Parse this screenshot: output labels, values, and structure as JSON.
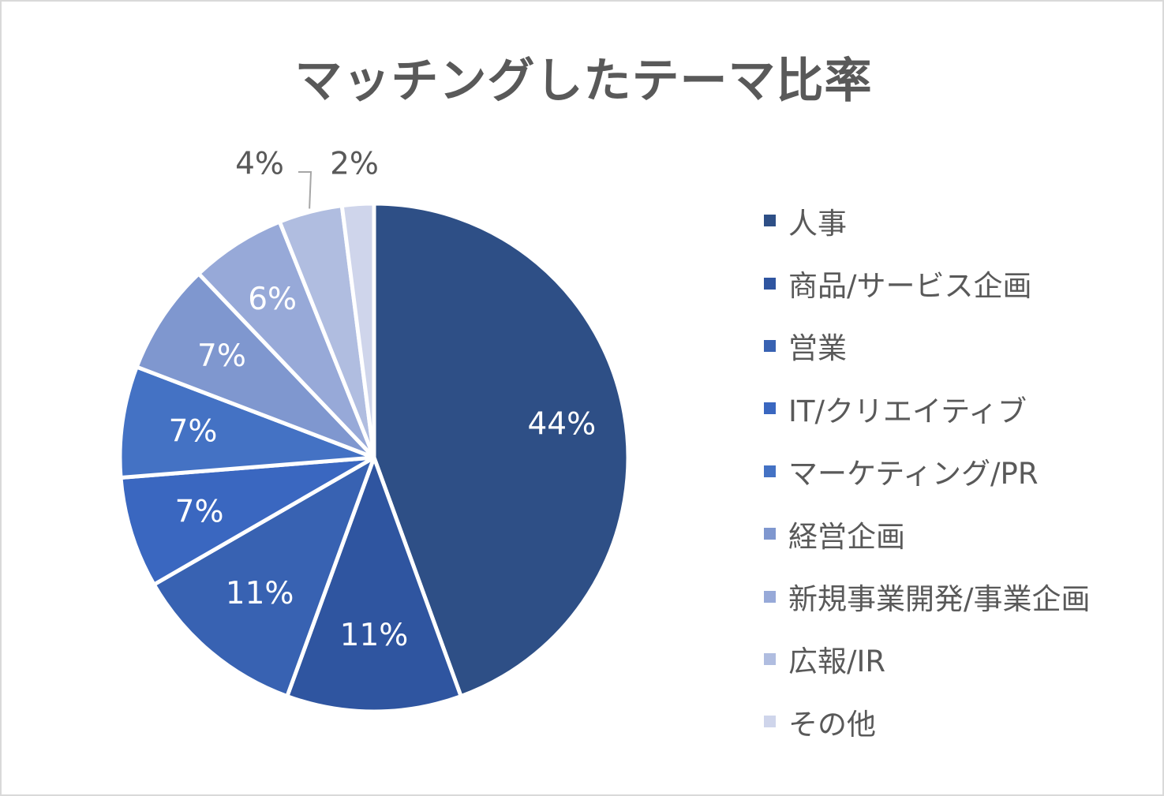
{
  "chart_data": {
    "type": "pie",
    "title": "マッチングしたテーマ比率",
    "categories": [
      "人事",
      "商品/サービス企画",
      "営業",
      "IT/クリエイティブ",
      "マーケティング/PR",
      "経営企画",
      "新規事業開発/事業企画",
      "広報/IR",
      "その他"
    ],
    "values": [
      44,
      11,
      11,
      7,
      7,
      7,
      6,
      4,
      2
    ],
    "labels": [
      "44%",
      "11%",
      "11%",
      "7%",
      "7%",
      "7%",
      "6%",
      "4%",
      "2%"
    ],
    "colors": [
      "#2e4f86",
      "#2f55a0",
      "#3862b2",
      "#3a67c0",
      "#4472c4",
      "#7f97cf",
      "#97a9d8",
      "#b0bde0",
      "#cfd5eb"
    ],
    "label_colors": [
      "#ffffff",
      "#ffffff",
      "#ffffff",
      "#ffffff",
      "#ffffff",
      "#ffffff",
      "#ffffff",
      "#595959",
      "#595959"
    ],
    "legend_position": "right",
    "start_angle": "top, clockwise"
  }
}
